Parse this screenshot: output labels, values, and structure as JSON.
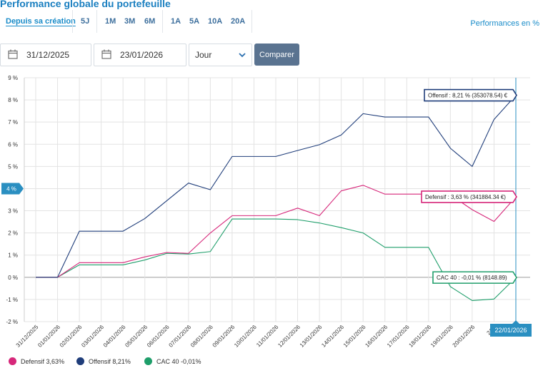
{
  "header": {
    "title": "Performance globale du portefeuille",
    "periods": [
      "Depuis sa création",
      "5J",
      "1M",
      "3M",
      "6M",
      "1A",
      "5A",
      "10A",
      "20A"
    ],
    "active_period": "Depuis sa création",
    "perf_link": "Performances en %"
  },
  "controls": {
    "date_from": "31/12/2025",
    "date_to": "23/01/2026",
    "frequency": "Jour",
    "compare_label": "Comparer"
  },
  "colors": {
    "defensif": "#d6277a",
    "offensif": "#1f3d7a",
    "cac40": "#1e9e6a",
    "axis_marker": "#2a8fc1"
  },
  "chart_data": {
    "type": "line",
    "x": [
      "31/12/2025",
      "01/01/2026",
      "02/01/2026",
      "03/01/2026",
      "04/01/2026",
      "05/01/2026",
      "06/01/2026",
      "07/01/2026",
      "08/01/2026",
      "09/01/2026",
      "10/01/2026",
      "11/01/2026",
      "12/01/2026",
      "13/01/2026",
      "14/01/2026",
      "15/01/2026",
      "16/01/2026",
      "17/01/2026",
      "18/01/2026",
      "19/01/2026",
      "20/01/2026",
      "21/01/2026",
      "22/01/2026"
    ],
    "x_tick_labels": [
      "31/12/2025",
      "01/01/2026",
      "02/01/2026",
      "03/01/2026",
      "04/01/2026",
      "05/01/2026",
      "06/01/2026",
      "07/01/2026",
      "08/01/2026",
      "09/01/2026",
      "10/01/2026",
      "11/01/2026",
      "12/01/2026",
      "13/01/2026",
      "14/01/2026",
      "15/01/2026",
      "16/01/2026",
      "17/01/2026",
      "18/01/2026",
      "19/01/2026",
      "20/01/2026",
      "21/0"
    ],
    "series": [
      {
        "name": "Offensif",
        "key": "offensif",
        "values": [
          0,
          0,
          2.08,
          2.08,
          2.08,
          2.65,
          3.45,
          4.25,
          3.95,
          5.45,
          5.45,
          5.45,
          5.72,
          5.98,
          6.42,
          7.38,
          7.23,
          7.23,
          7.23,
          5.82,
          5.0,
          7.12,
          8.21
        ]
      },
      {
        "name": "Defensif",
        "key": "defensif",
        "values": [
          0,
          0,
          0.66,
          0.66,
          0.66,
          0.92,
          1.12,
          1.08,
          2.0,
          2.78,
          2.78,
          2.78,
          3.12,
          2.78,
          3.9,
          4.15,
          3.75,
          3.75,
          3.75,
          3.72,
          3.05,
          2.52,
          3.63
        ]
      },
      {
        "name": "CAC 40",
        "key": "cac40",
        "values": [
          0,
          0,
          0.56,
          0.56,
          0.56,
          0.78,
          1.08,
          1.05,
          1.16,
          2.63,
          2.63,
          2.63,
          2.6,
          2.45,
          2.24,
          2.0,
          1.35,
          1.35,
          1.35,
          -0.42,
          -1.05,
          -0.98,
          -0.01
        ]
      }
    ],
    "ylim": [
      -2,
      9
    ],
    "y_ticks": [
      -2,
      -1,
      0,
      1,
      2,
      3,
      4,
      5,
      6,
      7,
      8,
      9
    ],
    "y_tick_suffix": " %",
    "grid": true,
    "crosshair_y_label": "4 %",
    "crosshair_x_label": "22/01/2026",
    "tooltips": [
      {
        "series": "offensif",
        "text": "Offensif : 8,21 % (353078.54) €"
      },
      {
        "series": "defensif",
        "text": "Defensif : 3,63 % (341884.34 €)"
      },
      {
        "series": "cac40",
        "text": "CAC 40 : -0,01 % (8148.89)"
      }
    ],
    "legend": [
      {
        "key": "defensif",
        "label": "Defensif",
        "value": "3,63%"
      },
      {
        "key": "offensif",
        "label": "Offensif",
        "value": "8,21%"
      },
      {
        "key": "cac40",
        "label": "CAC 40",
        "value": "-0,01%"
      }
    ]
  }
}
